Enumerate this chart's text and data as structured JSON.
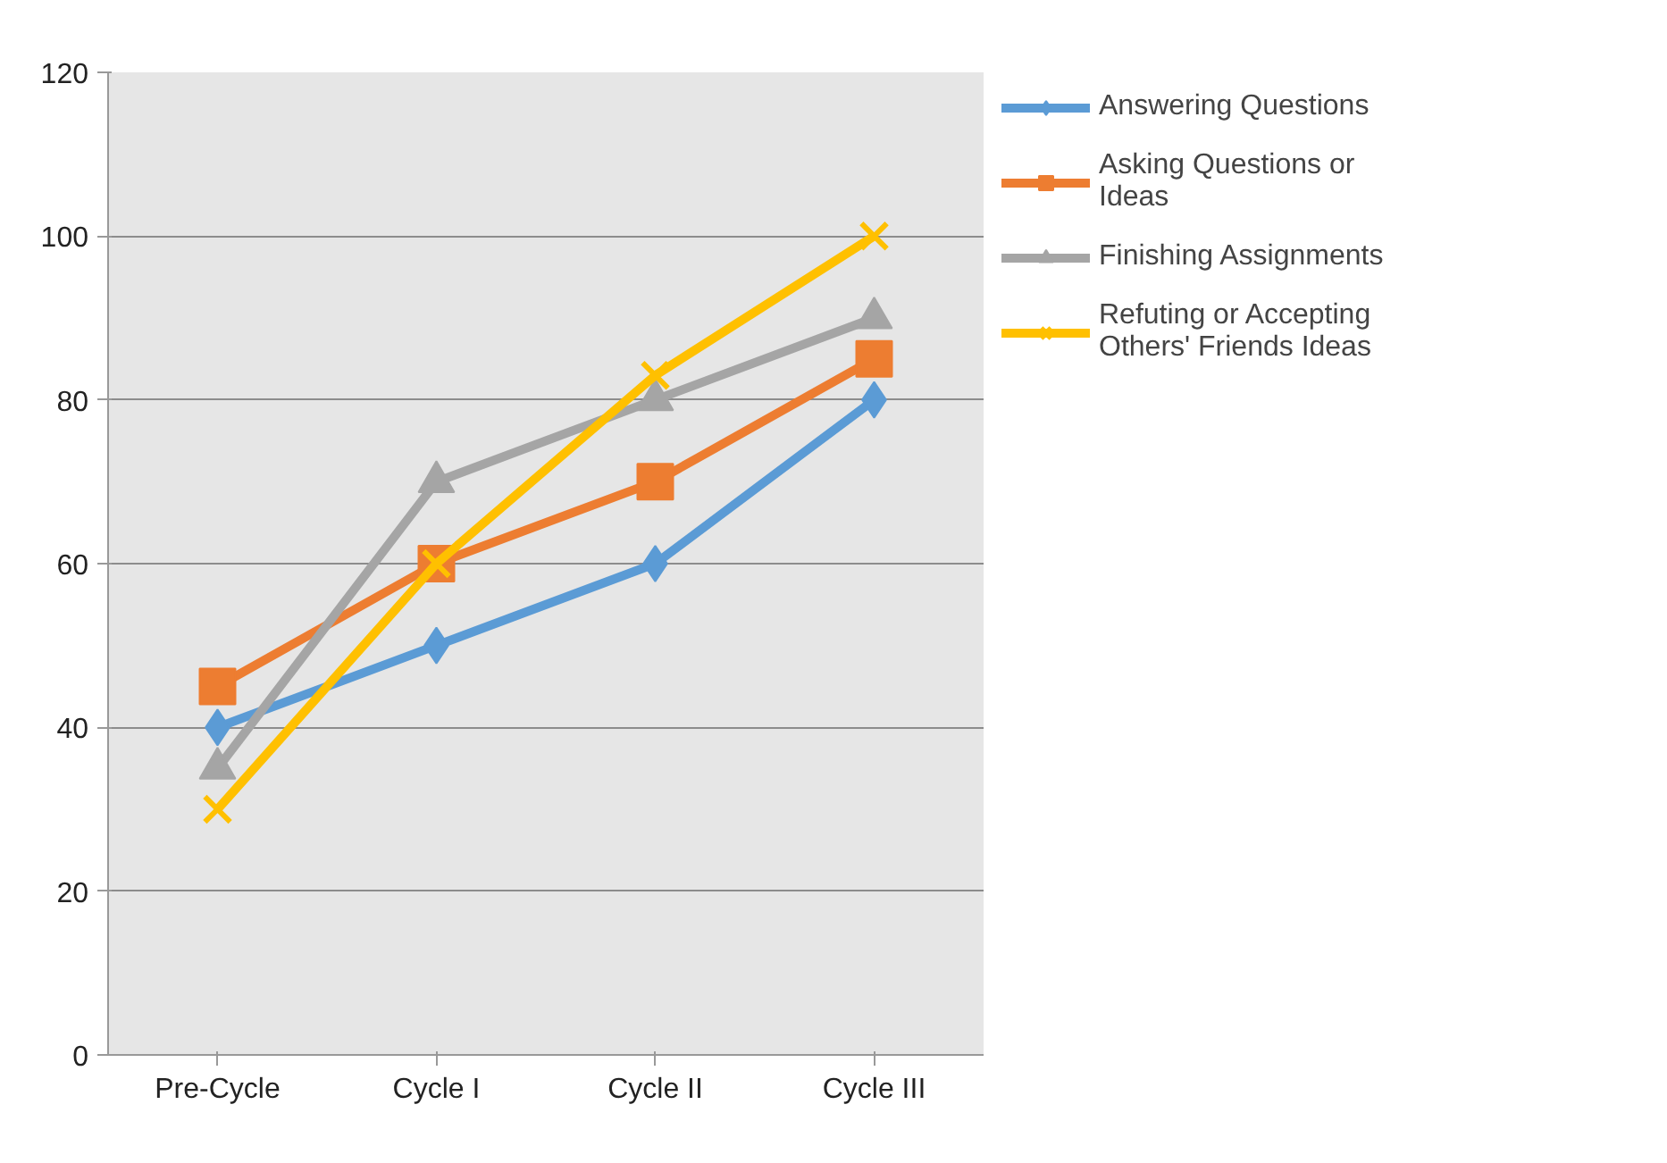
{
  "chart_data": {
    "type": "line",
    "categories": [
      "Pre-Cycle",
      "Cycle I",
      "Cycle II",
      "Cycle III"
    ],
    "series": [
      {
        "name": "Answering Questions",
        "color": "#5b9bd5",
        "marker": "diamond",
        "values": [
          40,
          50,
          60,
          80
        ]
      },
      {
        "name": "Asking Questions or Ideas",
        "color": "#ed7d31",
        "marker": "square",
        "values": [
          45,
          60,
          70,
          85
        ]
      },
      {
        "name": "Finishing Assignments",
        "color": "#a5a5a5",
        "marker": "triangle",
        "values": [
          35,
          70,
          80,
          90
        ]
      },
      {
        "name": "Refuting or Accepting Others' Friends Ideas",
        "color": "#ffc000",
        "marker": "cross",
        "values": [
          30,
          60,
          83,
          100
        ]
      }
    ],
    "ylim": [
      0,
      120
    ],
    "yticks": [
      0,
      20,
      40,
      60,
      80,
      100,
      120
    ],
    "grid": "y",
    "legend": "right"
  }
}
